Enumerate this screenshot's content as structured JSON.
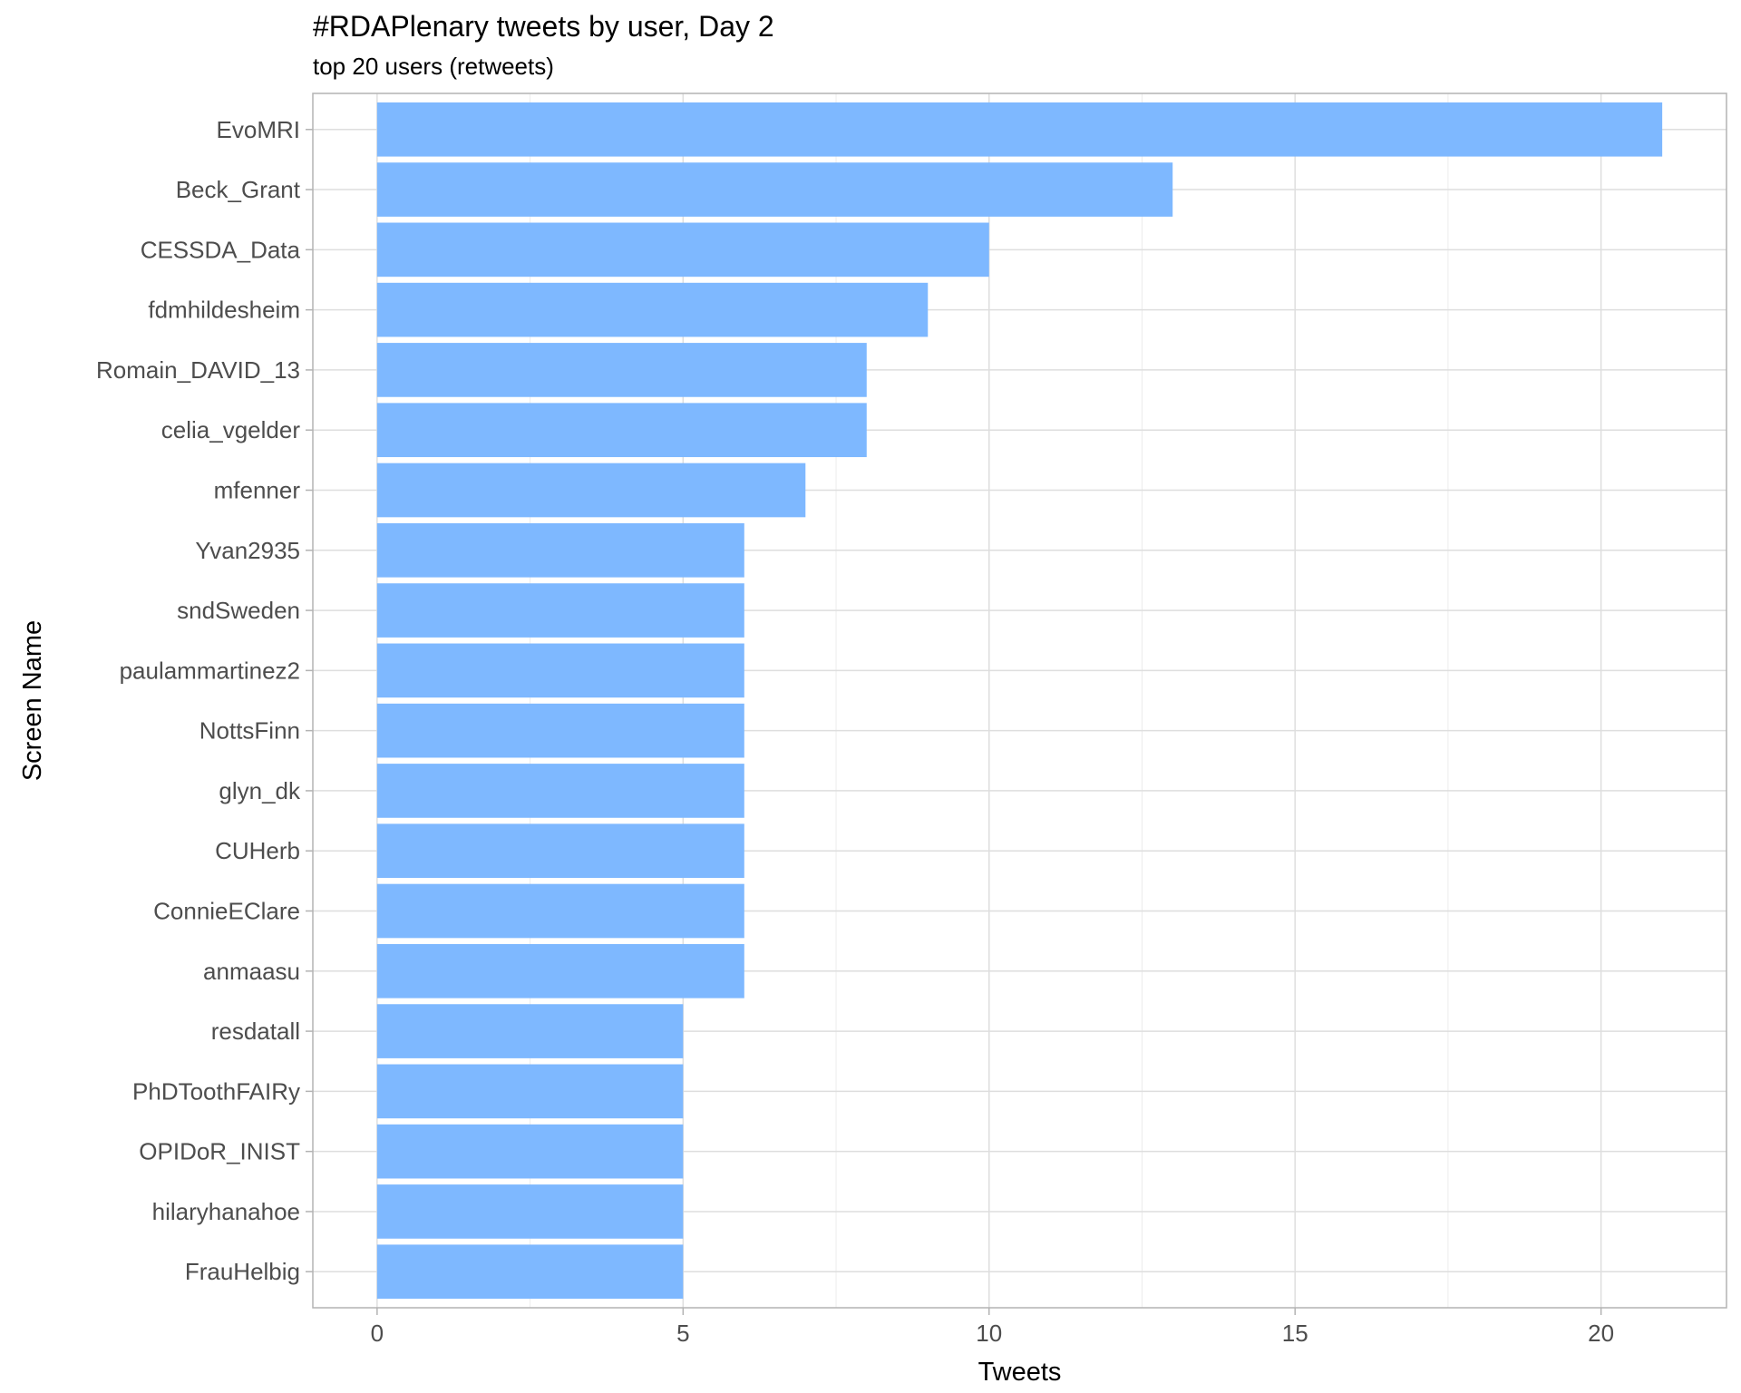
{
  "chart_data": {
    "type": "bar",
    "orientation": "horizontal",
    "title": "#RDAPlenary tweets by user, Day 2",
    "subtitle": "top 20 users (retweets)",
    "xlabel": "Tweets",
    "ylabel": "Screen Name",
    "categories": [
      "EvoMRI",
      "Beck_Grant",
      "CESSDA_Data",
      "fdmhildesheim",
      "Romain_DAVID_13",
      "celia_vgelder",
      "mfenner",
      "Yvan2935",
      "sndSweden",
      "paulammartinez2",
      "NottsFinn",
      "glyn_dk",
      "CUHerb",
      "ConnieEClare",
      "anmaasu",
      "resdatall",
      "PhDToothFAIRy",
      "OPIDoR_INIST",
      "hilaryhanahoe",
      "FrauHelbig"
    ],
    "values": [
      21,
      13,
      10,
      9,
      8,
      8,
      7,
      6,
      6,
      6,
      6,
      6,
      6,
      6,
      6,
      5,
      5,
      5,
      5,
      5
    ],
    "xlim": [
      -1.05,
      22.05
    ],
    "xticks": [
      0,
      5,
      10,
      15,
      20
    ],
    "xtick_labels": [
      "0",
      "5",
      "10",
      "15",
      "20"
    ],
    "bar_color": "#7EB8FF",
    "grid": true,
    "legend": "none"
  }
}
